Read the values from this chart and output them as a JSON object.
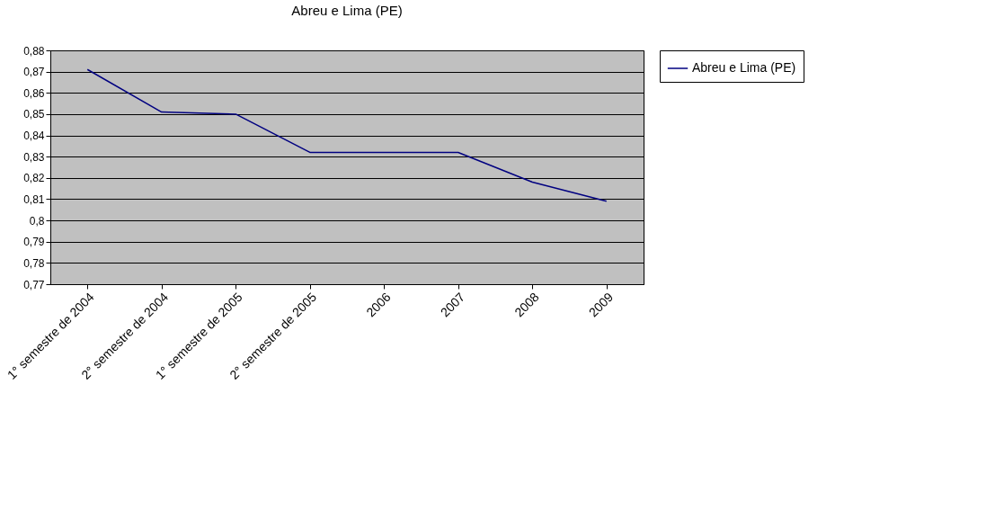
{
  "chart_data": {
    "type": "line",
    "title": "Abreu e Lima (PE)",
    "categories": [
      "1° semestre de 2004",
      "2° semestre de 2004",
      "1° semestre de 2005",
      "2° semestre de 2005",
      "2006",
      "2007",
      "2008",
      "2009"
    ],
    "series": [
      {
        "name": "Abreu e Lima (PE)",
        "color": "#000080",
        "values": [
          0.871,
          0.851,
          0.85,
          0.832,
          0.832,
          0.832,
          0.818,
          0.809
        ]
      }
    ],
    "ylim": [
      0.77,
      0.88
    ],
    "yticks": [
      {
        "value": 0.77,
        "label": "0,77"
      },
      {
        "value": 0.78,
        "label": "0,78"
      },
      {
        "value": 0.79,
        "label": "0,79"
      },
      {
        "value": 0.8,
        "label": "0,8"
      },
      {
        "value": 0.81,
        "label": "0,81"
      },
      {
        "value": 0.82,
        "label": "0,82"
      },
      {
        "value": 0.83,
        "label": "0,83"
      },
      {
        "value": 0.84,
        "label": "0,84"
      },
      {
        "value": 0.85,
        "label": "0,85"
      },
      {
        "value": 0.86,
        "label": "0,86"
      },
      {
        "value": 0.87,
        "label": "0,87"
      },
      {
        "value": 0.88,
        "label": "0,88"
      }
    ],
    "grid": "y",
    "legend": "right",
    "marker": "none",
    "line_style": "solid"
  }
}
